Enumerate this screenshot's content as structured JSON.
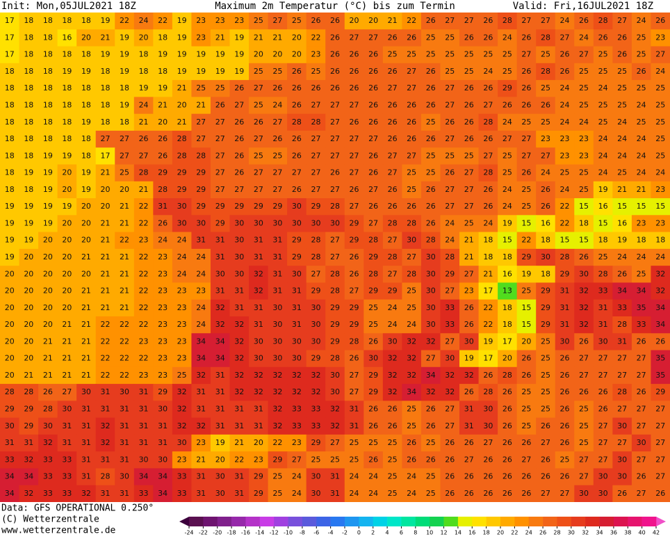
{
  "header": {
    "init": "Init: Mon,05JUL2021 18Z",
    "title": "Maximum 2m Temperatur (°C) bis zum Termin",
    "valid": "Valid: Fri,16JUL2021 18Z"
  },
  "footer": {
    "data": "Data: GFS OPERATIONAL 0.250°",
    "copyright": "(C) Wetterzentrale",
    "url": "www.wetterzentrale.de"
  },
  "map": {
    "rows": [
      [
        17,
        18,
        18,
        18,
        18,
        19,
        22,
        24,
        22,
        19,
        23,
        23,
        23,
        25,
        27,
        25,
        26,
        26,
        20,
        20,
        21,
        22,
        26,
        27,
        27,
        26,
        28,
        27,
        27,
        24,
        26,
        28,
        27,
        24,
        26
      ],
      [
        17,
        18,
        18,
        16,
        20,
        21,
        19,
        20,
        18,
        19,
        23,
        21,
        19,
        21,
        21,
        20,
        22,
        26,
        27,
        27,
        26,
        26,
        25,
        25,
        26,
        26,
        24,
        26,
        28,
        27,
        24,
        26,
        26,
        25,
        23
      ],
      [
        17,
        18,
        18,
        18,
        18,
        19,
        19,
        18,
        19,
        19,
        19,
        19,
        19,
        20,
        20,
        20,
        23,
        26,
        26,
        26,
        25,
        25,
        25,
        25,
        25,
        25,
        25,
        27,
        25,
        26,
        27,
        25,
        26,
        25,
        27
      ],
      [
        18,
        18,
        18,
        19,
        19,
        18,
        19,
        18,
        18,
        19,
        19,
        19,
        19,
        25,
        25,
        26,
        25,
        26,
        26,
        26,
        26,
        27,
        26,
        25,
        25,
        24,
        25,
        26,
        28,
        26,
        25,
        25,
        25,
        26,
        24
      ],
      [
        18,
        18,
        18,
        18,
        18,
        18,
        18,
        19,
        19,
        21,
        25,
        25,
        26,
        27,
        26,
        26,
        26,
        26,
        26,
        26,
        27,
        27,
        26,
        27,
        26,
        26,
        29,
        26,
        25,
        24,
        25,
        24,
        25,
        25,
        25
      ],
      [
        18,
        18,
        18,
        18,
        18,
        18,
        19,
        24,
        21,
        20,
        21,
        26,
        27,
        25,
        24,
        26,
        27,
        27,
        27,
        26,
        26,
        26,
        26,
        27,
        26,
        27,
        26,
        26,
        26,
        24,
        25,
        25,
        25,
        24,
        25
      ],
      [
        18,
        18,
        18,
        18,
        19,
        18,
        18,
        21,
        20,
        21,
        27,
        27,
        26,
        26,
        27,
        28,
        28,
        27,
        26,
        26,
        26,
        26,
        25,
        26,
        26,
        28,
        24,
        25,
        25,
        24,
        24,
        25,
        24,
        25,
        25
      ],
      [
        18,
        18,
        18,
        18,
        18,
        27,
        27,
        26,
        26,
        28,
        27,
        27,
        26,
        27,
        26,
        26,
        27,
        27,
        27,
        27,
        26,
        26,
        26,
        27,
        26,
        26,
        27,
        27,
        23,
        23,
        23,
        24,
        24,
        24,
        25
      ],
      [
        18,
        18,
        19,
        19,
        18,
        17,
        27,
        27,
        26,
        28,
        28,
        27,
        26,
        25,
        25,
        26,
        27,
        27,
        27,
        26,
        27,
        27,
        25,
        25,
        25,
        27,
        25,
        27,
        27,
        23,
        23,
        24,
        24,
        24,
        25
      ],
      [
        18,
        19,
        19,
        20,
        19,
        21,
        25,
        28,
        29,
        29,
        29,
        27,
        26,
        27,
        27,
        27,
        27,
        26,
        27,
        26,
        27,
        25,
        25,
        26,
        27,
        28,
        25,
        26,
        24,
        25,
        25,
        24,
        25,
        24,
        24
      ],
      [
        18,
        18,
        19,
        20,
        19,
        20,
        20,
        21,
        28,
        29,
        29,
        27,
        27,
        27,
        27,
        26,
        27,
        27,
        26,
        27,
        26,
        25,
        26,
        27,
        27,
        26,
        24,
        25,
        26,
        24,
        25,
        19,
        21,
        21,
        23
      ],
      [
        19,
        19,
        19,
        19,
        20,
        20,
        21,
        22,
        31,
        30,
        29,
        29,
        29,
        29,
        29,
        30,
        29,
        28,
        27,
        26,
        26,
        26,
        26,
        27,
        27,
        26,
        24,
        25,
        26,
        22,
        15,
        16,
        15,
        15,
        15
      ],
      [
        19,
        19,
        19,
        20,
        20,
        21,
        21,
        22,
        26,
        30,
        30,
        29,
        30,
        30,
        30,
        30,
        30,
        30,
        29,
        27,
        28,
        28,
        26,
        24,
        25,
        24,
        19,
        15,
        16,
        22,
        18,
        15,
        16,
        23,
        23
      ],
      [
        19,
        19,
        20,
        20,
        20,
        21,
        22,
        23,
        24,
        24,
        31,
        31,
        30,
        31,
        31,
        29,
        28,
        27,
        29,
        28,
        27,
        30,
        28,
        24,
        21,
        18,
        15,
        22,
        18,
        15,
        15,
        18,
        19,
        18,
        18
      ],
      [
        19,
        20,
        20,
        20,
        21,
        21,
        21,
        22,
        23,
        24,
        24,
        31,
        30,
        31,
        31,
        29,
        28,
        27,
        26,
        29,
        28,
        27,
        30,
        28,
        21,
        18,
        18,
        29,
        30,
        28,
        26,
        25,
        24,
        24,
        24
      ],
      [
        20,
        20,
        20,
        20,
        20,
        21,
        21,
        22,
        23,
        24,
        24,
        30,
        30,
        32,
        31,
        30,
        27,
        28,
        26,
        28,
        27,
        28,
        30,
        29,
        27,
        21,
        16,
        19,
        18,
        29,
        30,
        28,
        26,
        25,
        32
      ],
      [
        20,
        20,
        20,
        20,
        21,
        21,
        21,
        22,
        23,
        23,
        23,
        31,
        31,
        32,
        31,
        31,
        29,
        28,
        27,
        29,
        29,
        25,
        30,
        27,
        23,
        17,
        13,
        25,
        29,
        31,
        32,
        33,
        34,
        34,
        32
      ],
      [
        20,
        20,
        20,
        20,
        21,
        21,
        21,
        22,
        23,
        23,
        24,
        32,
        31,
        31,
        30,
        31,
        30,
        29,
        29,
        25,
        24,
        25,
        30,
        33,
        26,
        22,
        18,
        15,
        29,
        31,
        32,
        31,
        33,
        35,
        34
      ],
      [
        20,
        20,
        20,
        21,
        21,
        22,
        22,
        22,
        23,
        23,
        24,
        32,
        32,
        31,
        30,
        31,
        30,
        29,
        29,
        25,
        24,
        24,
        30,
        33,
        26,
        22,
        18,
        15,
        29,
        31,
        32,
        31,
        28,
        33,
        34
      ],
      [
        20,
        20,
        21,
        21,
        21,
        22,
        22,
        23,
        23,
        23,
        34,
        34,
        32,
        30,
        30,
        30,
        30,
        29,
        28,
        26,
        30,
        32,
        32,
        27,
        30,
        19,
        17,
        20,
        25,
        30,
        26,
        30,
        31,
        26,
        26
      ],
      [
        20,
        20,
        21,
        21,
        21,
        22,
        22,
        22,
        23,
        23,
        34,
        34,
        32,
        30,
        30,
        30,
        29,
        28,
        26,
        30,
        32,
        32,
        27,
        30,
        19,
        17,
        20,
        26,
        25,
        26,
        27,
        27,
        27,
        27,
        35
      ],
      [
        20,
        21,
        21,
        21,
        21,
        22,
        22,
        23,
        23,
        25,
        32,
        31,
        32,
        32,
        32,
        32,
        32,
        30,
        27,
        29,
        32,
        32,
        34,
        32,
        32,
        26,
        28,
        26,
        25,
        26,
        27,
        27,
        27,
        27,
        35
      ],
      [
        28,
        28,
        26,
        27,
        30,
        31,
        30,
        31,
        29,
        32,
        31,
        31,
        32,
        32,
        32,
        32,
        32,
        30,
        27,
        29,
        32,
        34,
        32,
        32,
        26,
        28,
        26,
        25,
        25,
        26,
        26,
        26,
        28,
        26,
        29
      ],
      [
        29,
        29,
        28,
        30,
        31,
        31,
        31,
        31,
        30,
        32,
        31,
        31,
        31,
        31,
        32,
        33,
        33,
        32,
        31,
        26,
        26,
        25,
        26,
        27,
        31,
        30,
        26,
        25,
        25,
        26,
        25,
        26,
        27,
        27,
        27
      ],
      [
        30,
        29,
        30,
        31,
        31,
        32,
        31,
        31,
        31,
        32,
        32,
        31,
        31,
        31,
        32,
        33,
        33,
        32,
        31,
        26,
        26,
        25,
        26,
        27,
        31,
        30,
        26,
        25,
        26,
        26,
        25,
        27,
        30,
        27,
        27
      ],
      [
        31,
        31,
        32,
        31,
        31,
        32,
        31,
        31,
        31,
        30,
        23,
        19,
        21,
        20,
        22,
        23,
        29,
        27,
        25,
        25,
        25,
        26,
        25,
        26,
        26,
        27,
        26,
        26,
        27,
        26,
        25,
        27,
        27,
        30,
        27
      ],
      [
        33,
        32,
        33,
        33,
        31,
        31,
        31,
        30,
        30,
        23,
        21,
        20,
        22,
        23,
        29,
        27,
        25,
        25,
        25,
        26,
        25,
        26,
        26,
        26,
        27,
        26,
        26,
        27,
        26,
        25,
        27,
        27,
        30,
        27,
        27
      ],
      [
        34,
        34,
        33,
        33,
        31,
        28,
        30,
        34,
        34,
        33,
        31,
        30,
        31,
        29,
        25,
        24,
        30,
        31,
        24,
        24,
        25,
        24,
        25,
        26,
        26,
        26,
        26,
        26,
        26,
        26,
        27,
        30,
        30,
        26,
        27
      ],
      [
        34,
        32,
        33,
        33,
        32,
        31,
        31,
        33,
        34,
        33,
        31,
        30,
        31,
        29,
        25,
        24,
        30,
        31,
        24,
        24,
        25,
        24,
        25,
        26,
        26,
        26,
        26,
        26,
        27,
        27,
        30,
        30,
        26,
        27,
        26
      ]
    ]
  },
  "legend": {
    "ticks": [
      -24,
      -22,
      -20,
      -18,
      -16,
      -14,
      -12,
      -10,
      -8,
      -6,
      -4,
      -2,
      0,
      2,
      4,
      6,
      8,
      10,
      12,
      14,
      16,
      18,
      20,
      22,
      24,
      26,
      28,
      30,
      32,
      34,
      36,
      38,
      40,
      42
    ],
    "colors": [
      "#3c003c",
      "#5a1050",
      "#6e1470",
      "#80208c",
      "#9628aa",
      "#b432c8",
      "#c83ce6",
      "#a040e0",
      "#7850dc",
      "#5a5adc",
      "#3c64e6",
      "#2878f0",
      "#1e96f0",
      "#14b4f0",
      "#00d2e6",
      "#00e6c8",
      "#00e6a0",
      "#00dc78",
      "#14d250",
      "#50dc1e",
      "#e6f000",
      "#ffe100",
      "#ffc800",
      "#ffaa00",
      "#ff9100",
      "#f87a10",
      "#f26418",
      "#ee5018",
      "#e63c1e",
      "#de2a1e",
      "#d61e32",
      "#dc1450",
      "#e6146e",
      "#f0148c",
      "#f050c8"
    ]
  }
}
